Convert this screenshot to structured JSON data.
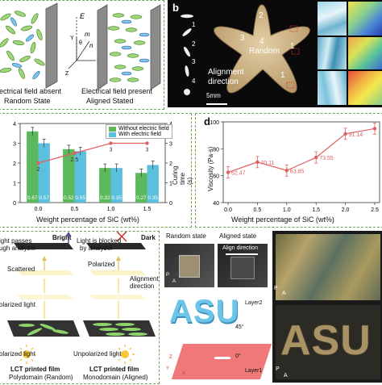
{
  "panel_a": {
    "left_caption_1": "ectrical field absent",
    "left_caption_2": "Random State",
    "right_caption_1": "Electrical field present",
    "right_caption_2": "Aligned Stated",
    "axis_y": "Y",
    "axis_z": "Z",
    "axis_x": "X",
    "vec_e": "E",
    "vec_m": "m",
    "vec_n": "n",
    "angle": "θ"
  },
  "panel_b": {
    "letter": "b",
    "random_label": "Random",
    "alignment_label_1": "Alignment",
    "alignment_label_2": "direction",
    "scale_bar": "5mm",
    "arm_numbers": [
      "1",
      "2",
      "3",
      "4",
      "1"
    ],
    "center_number": "4",
    "legend_numbers": [
      "1",
      "2",
      "3",
      "4"
    ]
  },
  "panel_c": {
    "chart_data": {
      "type": "bar",
      "categories": [
        "0.0",
        "0.5",
        "1.0",
        "1.5"
      ],
      "xlabel": "Weight percentage of SiC (wt%)",
      "ylabel_right": "Curing time (s)",
      "ylim": [
        0,
        4
      ],
      "ylim_right": [
        0,
        4
      ],
      "legend_position": "top-right",
      "series": [
        {
          "name": "Without electric field",
          "color": "#5cb85c",
          "values": [
            3.6,
            2.7,
            1.75,
            1.5
          ],
          "labels": [
            "0.67",
            "0.52",
            "0.32",
            "0.27"
          ]
        },
        {
          "name": "With electric field",
          "color": "#5bc0de",
          "values": [
            3.0,
            2.6,
            1.75,
            1.9
          ],
          "labels": [
            "0.57",
            "0.55",
            "0.35",
            "0.35"
          ]
        }
      ],
      "line": {
        "color": "#e06060",
        "values": [
          2.0,
          2.5,
          3.0,
          3.0
        ],
        "point_labels": [
          "2",
          "2.5",
          "3",
          "3"
        ]
      },
      "yticks": [
        "0",
        "1",
        "2",
        "3",
        "4"
      ],
      "yticks_right": [
        "0",
        "1",
        "2",
        "3",
        "4"
      ]
    }
  },
  "panel_d": {
    "letter": "d",
    "chart_data": {
      "type": "line",
      "x": [
        0.0,
        0.5,
        1.0,
        1.5,
        2.0,
        2.5
      ],
      "y": [
        62.47,
        70.11,
        63.85,
        73.55,
        91.14,
        95
      ],
      "point_labels": [
        "62.47",
        "70.11",
        "63.85",
        "73.55",
        "91.14",
        ""
      ],
      "xlabel": "Weight percentage of SiC (wt%)",
      "ylabel": "Viscosity (Pa·s)",
      "ylim": [
        40,
        100
      ],
      "yticks": [
        "40",
        "60",
        "80",
        "100"
      ],
      "xticks": [
        "0.0",
        "0.5",
        "1.0",
        "1.5",
        "2.0",
        "2.5"
      ],
      "color": "#e06060"
    }
  },
  "panel_e": {
    "bright": "Bright",
    "dark": "Dark",
    "passes": "ight passes",
    "passes_2": "ugh analyzer",
    "blocked": "Light is blocked",
    "blocked_2": "by analyzer",
    "scattered": "Scattered",
    "polarized": "Polarized",
    "alignment": "Alignment",
    "direction": "direction",
    "polarized_light": "olarized light",
    "unpolarized_light_left": "olarized light",
    "unpolarized_light_right": "Unpolarized light",
    "film_left_1": "LCT printed film",
    "film_left_2": "Polydomain (Random)",
    "film_right_1": "LCT printed film",
    "film_right_2": "Monodomain (Aligned)"
  },
  "panel_f": {
    "random_state": "Random state",
    "aligned_state": "Aligned state",
    "align_direction": "Align direction",
    "asu": "ASU",
    "layer2": "Layer2",
    "layer1": "Layer1",
    "angle_45": "45°",
    "angle_0": "0°",
    "axis_p": "P",
    "axis_a": "A",
    "axis_z": "Z",
    "axis_y": "Y",
    "axis_x": "X"
  },
  "panel_g": {
    "asu": "ASU",
    "axis_p": "P",
    "axis_a": "A"
  }
}
